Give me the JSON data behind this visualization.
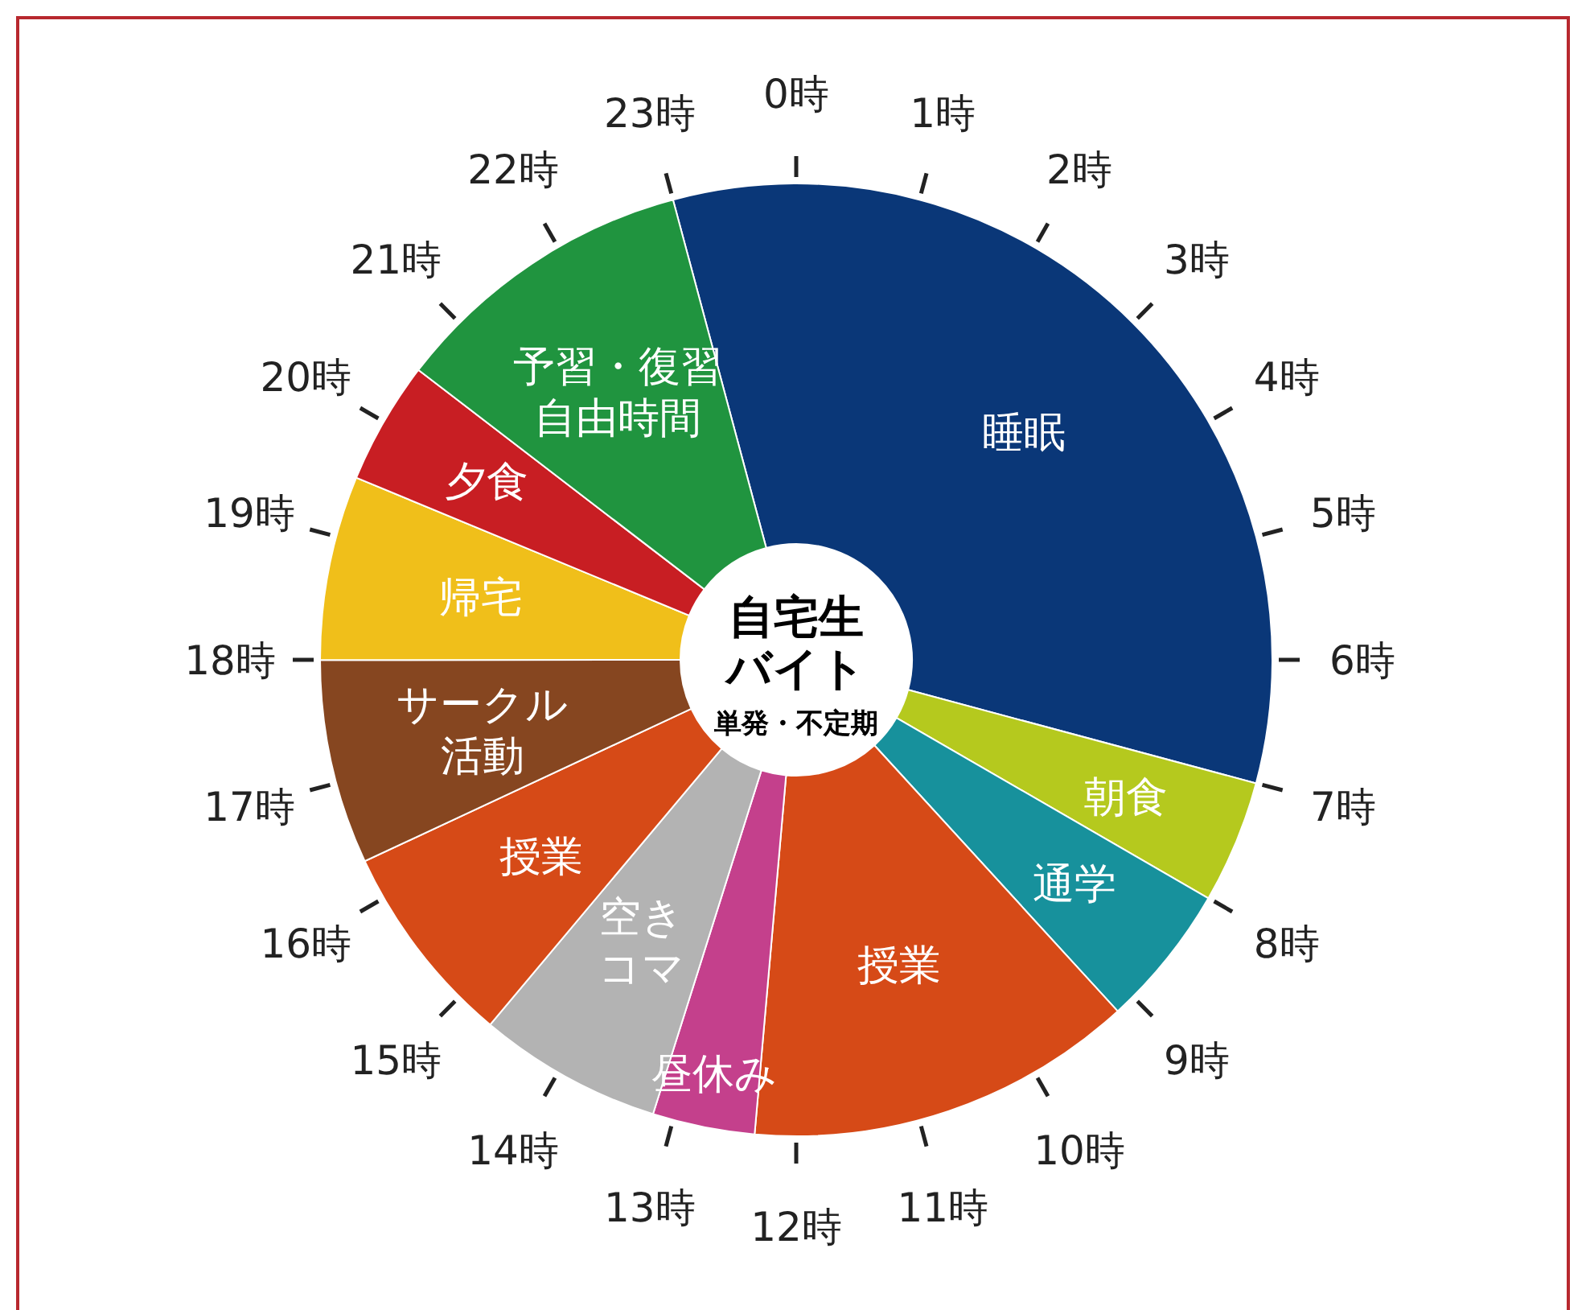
{
  "chart_data": {
    "type": "donut",
    "title": "自宅生",
    "subtitle": "バイト",
    "categories": [
      "睡眠",
      "朝食",
      "通学",
      "授業",
      "昼休み",
      "空きコマ",
      "授業",
      "サークル活動",
      "帰宅",
      "夕食",
      "予習・復習自由時間"
    ],
    "values": [
      33.34,
      4.17,
      4.86,
      13.19,
      3.47,
      6.25,
      6.94,
      6.94,
      6.25,
      4.17,
      10.42
    ],
    "colors": [
      "#0a3778",
      "#b5c91e",
      "#17919c",
      "#d64a17",
      "#c4408c",
      "#b3b3b3",
      "#d64a17",
      "#864620",
      "#f0bf1a",
      "#c81e23",
      "#20943f"
    ],
    "annotations": [
      "単発・不定期",
      "0時",
      "1時",
      "2時",
      "3時",
      "4時",
      "5時",
      "6時",
      "7時",
      "8時",
      "9時",
      "10時",
      "11時",
      "12時",
      "13時",
      "14時",
      "15時",
      "16時",
      "17時",
      "18時",
      "19時",
      "20時",
      "21時",
      "22時",
      "23時"
    ],
    "grid": false
  }
}
